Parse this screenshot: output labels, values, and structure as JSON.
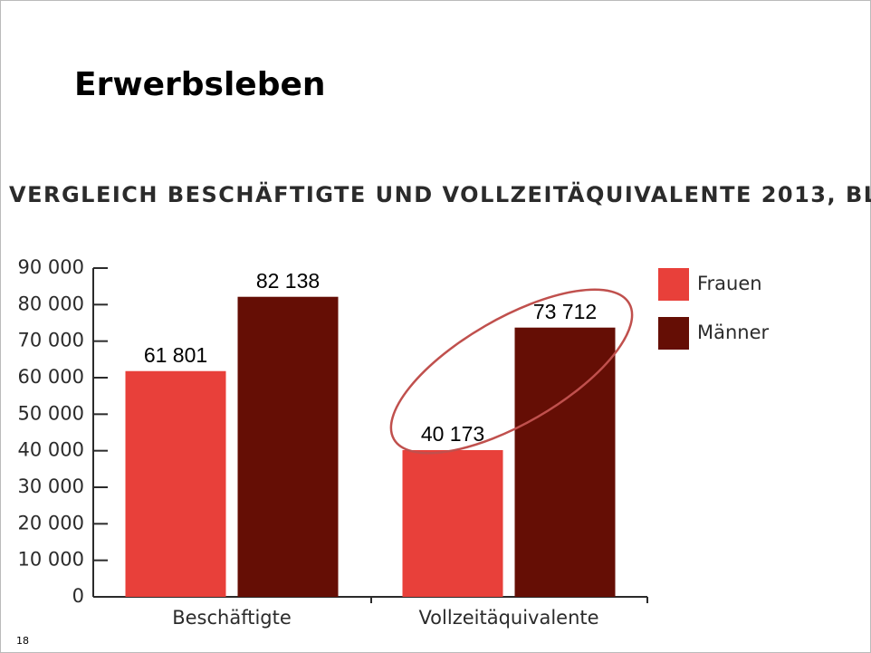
{
  "page_title": "Erwerbsleben",
  "page_number": "18",
  "chart_data": {
    "type": "bar",
    "title": "VERGLEICH BESCHÄFTIGTE UND VOLLZEITÄQUIVALENTE 2013, BL",
    "categories": [
      "Beschäftigte",
      "Vollzeitäquivalente"
    ],
    "series": [
      {
        "name": "Frauen",
        "color": "#e8403a",
        "values": [
          61801,
          40173
        ],
        "value_labels": [
          "61 801",
          "40 173"
        ]
      },
      {
        "name": "Männer",
        "color": "#650e05",
        "values": [
          82138,
          73712
        ],
        "value_labels": [
          "82 138",
          "73 712"
        ]
      }
    ],
    "ylim": [
      0,
      90000
    ],
    "yticks": [
      0,
      {
        "value": 10000,
        "label": "10 000"
      },
      {
        "value": 20000,
        "label": "20 000"
      },
      {
        "value": 30000,
        "label": "30 000"
      },
      {
        "value": 40000,
        "label": "40 000"
      },
      {
        "value": 50000,
        "label": "50 000"
      },
      {
        "value": 60000,
        "label": "60 000"
      },
      {
        "value": 70000,
        "label": "70 000"
      },
      {
        "value": 80000,
        "label": "80 000"
      },
      {
        "value": 90000,
        "label": "90 000"
      }
    ],
    "legend": "right"
  }
}
